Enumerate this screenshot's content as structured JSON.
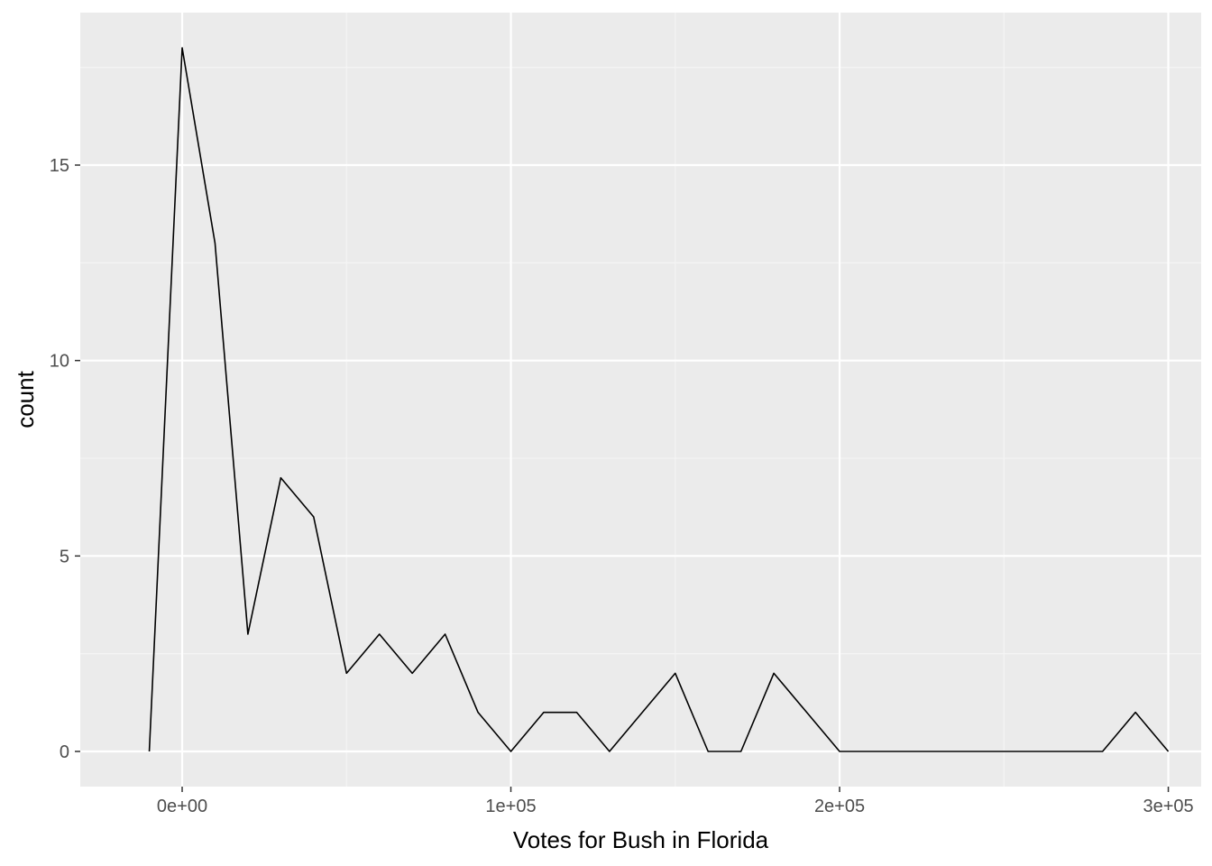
{
  "chart_data": {
    "type": "line",
    "title": "",
    "xlabel": "Votes for Bush in Florida",
    "ylabel": "count",
    "xlim": [
      -31000,
      310000
    ],
    "ylim": [
      -0.9,
      18.9
    ],
    "grid": true,
    "x_ticks": [
      {
        "value": 0,
        "label": "0e+00"
      },
      {
        "value": 100000,
        "label": "1e+05"
      },
      {
        "value": 200000,
        "label": "2e+05"
      },
      {
        "value": 300000,
        "label": "3e+05"
      }
    ],
    "y_ticks": [
      {
        "value": 0,
        "label": "0"
      },
      {
        "value": 5,
        "label": "5"
      },
      {
        "value": 10,
        "label": "10"
      },
      {
        "value": 15,
        "label": "15"
      }
    ],
    "series": [
      {
        "line_color": "#000000",
        "x": [
          -10000,
          0,
          10000,
          20000,
          30000,
          40000,
          50000,
          60000,
          70000,
          80000,
          90000,
          100000,
          110000,
          120000,
          130000,
          140000,
          150000,
          160000,
          170000,
          180000,
          190000,
          200000,
          210000,
          220000,
          230000,
          240000,
          250000,
          260000,
          270000,
          280000,
          290000,
          300000
        ],
        "y": [
          0,
          18,
          13,
          3,
          7,
          6,
          2,
          3,
          2,
          3,
          1,
          0,
          1,
          1,
          0,
          1,
          2,
          0,
          0,
          2,
          1,
          0,
          0,
          0,
          0,
          0,
          0,
          0,
          0,
          0,
          1,
          0
        ]
      }
    ],
    "colors": {
      "panel_background": "#EBEBEB",
      "grid_major": "#FFFFFF",
      "grid_minor": "#F5F5F5",
      "tick_mark": "#333333",
      "tick_label": "#4D4D4D"
    }
  }
}
